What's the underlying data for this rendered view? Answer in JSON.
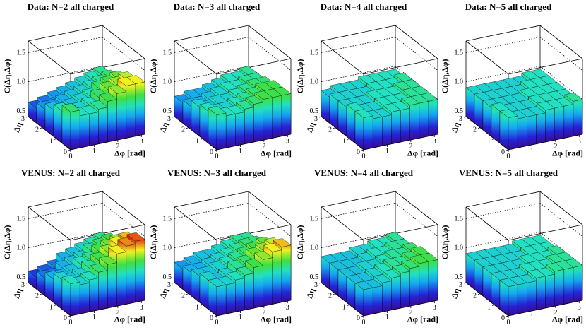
{
  "chart_data": [
    {
      "type": "lego3d",
      "title": "Data: N=2  all charged",
      "xlabel": "Δφ [rad]",
      "ylabel": "Δη",
      "zlabel": "C(Δη,Δφ)",
      "xlim": [
        0,
        3.1416
      ],
      "xticks": [
        0,
        1,
        2,
        3
      ],
      "ylim": [
        0,
        3
      ],
      "yticks": [
        0,
        1,
        2,
        3
      ],
      "zlim": [
        0.4,
        1.7
      ],
      "zticks": [
        0.5,
        {
          "value": 1,
          "label": "1.0"
        },
        1.5
      ],
      "xbins": [
        0,
        0.3927,
        0.7854,
        1.1781,
        1.5708,
        1.9635,
        2.3562,
        2.7489,
        3.1416
      ],
      "ybins": [
        0,
        0.6,
        1.2,
        1.8,
        2.4,
        3.0
      ],
      "z": [
        [
          1.05,
          0.95,
          0.95,
          1.0,
          1.1,
          1.2,
          1.3,
          1.3
        ],
        [
          0.95,
          0.9,
          0.9,
          0.95,
          1.05,
          1.15,
          1.2,
          1.25
        ],
        [
          0.85,
          0.8,
          0.85,
          0.9,
          0.95,
          1.05,
          1.1,
          1.15
        ],
        [
          0.75,
          0.75,
          0.8,
          0.85,
          0.9,
          0.95,
          1.0,
          1.05
        ],
        [
          0.65,
          0.7,
          0.75,
          0.8,
          0.85,
          0.9,
          0.95,
          1.0
        ]
      ]
    },
    {
      "type": "lego3d",
      "title": "Data: N=3  all charged",
      "xlabel": "Δφ [rad]",
      "ylabel": "Δη",
      "zlabel": "C(Δη,Δφ)",
      "xlim": [
        0,
        3.1416
      ],
      "xticks": [
        0,
        1,
        2,
        3
      ],
      "ylim": [
        0,
        3
      ],
      "yticks": [
        0,
        1,
        2,
        3
      ],
      "zlim": [
        0.4,
        1.7
      ],
      "zticks": [
        0.5,
        {
          "value": 1,
          "label": "1.0"
        },
        1.5
      ],
      "xbins": [
        0,
        0.3927,
        0.7854,
        1.1781,
        1.5708,
        1.9635,
        2.3562,
        2.7489,
        3.1416
      ],
      "ybins": [
        0,
        0.6,
        1.2,
        1.8,
        2.4,
        3.0
      ],
      "z": [
        [
          1.0,
          0.95,
          0.95,
          1.0,
          1.05,
          1.1,
          1.1,
          1.1
        ],
        [
          0.95,
          0.9,
          0.9,
          0.95,
          1.0,
          1.05,
          1.1,
          1.1
        ],
        [
          0.9,
          0.85,
          0.9,
          0.9,
          0.95,
          1.0,
          1.05,
          1.05
        ],
        [
          0.8,
          0.8,
          0.85,
          0.9,
          0.95,
          0.95,
          1.0,
          1.0
        ],
        [
          0.75,
          0.8,
          0.8,
          0.85,
          0.9,
          0.95,
          0.95,
          1.0
        ]
      ]
    },
    {
      "type": "lego3d",
      "title": "Data: N=4  all charged",
      "xlabel": "Δφ [rad]",
      "ylabel": "Δη",
      "zlabel": "C(Δη,Δφ)",
      "xlim": [
        0,
        3.1416
      ],
      "xticks": [
        0,
        1,
        2,
        3
      ],
      "ylim": [
        0,
        3
      ],
      "yticks": [
        0,
        1,
        2,
        3
      ],
      "zlim": [
        0.4,
        1.7
      ],
      "zticks": [
        0.5,
        {
          "value": 1,
          "label": "1.0"
        },
        1.5
      ],
      "xbins": [
        0,
        0.3927,
        0.7854,
        1.1781,
        1.5708,
        1.9635,
        2.3562,
        2.7489,
        3.1416
      ],
      "ybins": [
        0,
        0.6,
        1.2,
        1.8,
        2.4,
        3.0
      ],
      "z": [
        [
          0.95,
          0.9,
          0.9,
          0.95,
          0.95,
          1.0,
          1.0,
          1.0
        ],
        [
          0.95,
          0.9,
          0.9,
          0.95,
          0.95,
          0.95,
          1.0,
          1.0
        ],
        [
          0.9,
          0.9,
          0.9,
          0.95,
          0.95,
          0.95,
          1.0,
          1.0
        ],
        [
          0.9,
          0.9,
          0.9,
          0.9,
          0.95,
          0.95,
          0.95,
          1.0
        ],
        [
          0.85,
          0.9,
          0.9,
          0.9,
          0.95,
          0.95,
          0.95,
          0.95
        ]
      ]
    },
    {
      "type": "lego3d",
      "title": "Data: N=5  all charged",
      "xlabel": "Δφ [rad]",
      "ylabel": "Δη",
      "zlabel": "C(Δη,Δφ)",
      "xlim": [
        0,
        3.1416
      ],
      "xticks": [
        0,
        1,
        2,
        3
      ],
      "ylim": [
        0,
        3
      ],
      "yticks": [
        0,
        1,
        2,
        3
      ],
      "zlim": [
        0.4,
        1.7
      ],
      "zticks": [
        0.5,
        {
          "value": 1,
          "label": "1.0"
        },
        1.5
      ],
      "xbins": [
        0,
        0.3927,
        0.7854,
        1.1781,
        1.5708,
        1.9635,
        2.3562,
        2.7489,
        3.1416
      ],
      "ybins": [
        0,
        0.6,
        1.2,
        1.8,
        2.4,
        3.0
      ],
      "z": [
        [
          0.95,
          0.9,
          0.9,
          0.9,
          0.95,
          0.95,
          0.95,
          1.0
        ],
        [
          0.95,
          0.9,
          0.9,
          0.9,
          0.95,
          0.95,
          0.95,
          0.95
        ],
        [
          0.9,
          0.9,
          0.9,
          0.9,
          0.95,
          0.95,
          0.95,
          0.95
        ],
        [
          0.9,
          0.9,
          0.9,
          0.9,
          0.9,
          0.95,
          0.95,
          0.95
        ],
        [
          0.9,
          0.9,
          0.9,
          0.9,
          0.9,
          0.9,
          0.95,
          0.95
        ]
      ]
    },
    {
      "type": "lego3d",
      "title": "VENUS: N=2  all charged",
      "xlabel": "Δφ [rad]",
      "ylabel": "Δη",
      "zlabel": "C(Δη,Δφ)",
      "xlim": [
        0,
        3.1416
      ],
      "xticks": [
        0,
        1,
        2,
        3
      ],
      "ylim": [
        0,
        3
      ],
      "yticks": [
        0,
        1,
        2,
        3
      ],
      "zlim": [
        0.4,
        1.7
      ],
      "zticks": [
        0.5,
        {
          "value": 1,
          "label": "1.0"
        },
        1.5
      ],
      "xbins": [
        0,
        0.3927,
        0.7854,
        1.1781,
        1.5708,
        1.9635,
        2.3562,
        2.7489,
        3.1416
      ],
      "ybins": [
        0,
        0.6,
        1.2,
        1.8,
        2.4,
        3.0
      ],
      "z": [
        [
          0.95,
          0.9,
          0.95,
          1.05,
          1.15,
          1.3,
          1.4,
          1.45
        ],
        [
          0.9,
          0.85,
          0.9,
          1.0,
          1.1,
          1.2,
          1.3,
          1.35
        ],
        [
          0.8,
          0.8,
          0.85,
          0.95,
          1.0,
          1.1,
          1.15,
          1.2
        ],
        [
          0.7,
          0.7,
          0.8,
          0.85,
          0.9,
          1.0,
          1.05,
          1.1
        ],
        [
          0.6,
          0.65,
          0.7,
          0.8,
          0.85,
          0.9,
          0.95,
          1.0
        ]
      ]
    },
    {
      "type": "lego3d",
      "title": "VENUS: N=3  all charged",
      "xlabel": "Δφ [rad]",
      "ylabel": "Δη",
      "zlabel": "C(Δη,Δφ)",
      "xlim": [
        0,
        3.1416
      ],
      "xticks": [
        0,
        1,
        2,
        3
      ],
      "ylim": [
        0,
        3
      ],
      "yticks": [
        0,
        1,
        2,
        3
      ],
      "zlim": [
        0.4,
        1.7
      ],
      "zticks": [
        0.5,
        {
          "value": 1,
          "label": "1.0"
        },
        1.5
      ],
      "xbins": [
        0,
        0.3927,
        0.7854,
        1.1781,
        1.5708,
        1.9635,
        2.3562,
        2.7489,
        3.1416
      ],
      "ybins": [
        0,
        0.6,
        1.2,
        1.8,
        2.4,
        3.0
      ],
      "z": [
        [
          0.9,
          0.9,
          0.95,
          1.0,
          1.1,
          1.2,
          1.3,
          1.35
        ],
        [
          0.9,
          0.85,
          0.9,
          1.0,
          1.05,
          1.15,
          1.2,
          1.25
        ],
        [
          0.85,
          0.85,
          0.9,
          0.95,
          1.0,
          1.05,
          1.1,
          1.15
        ],
        [
          0.8,
          0.8,
          0.85,
          0.9,
          0.95,
          1.0,
          1.05,
          1.05
        ],
        [
          0.75,
          0.8,
          0.85,
          0.85,
          0.9,
          0.95,
          1.0,
          1.0
        ]
      ]
    },
    {
      "type": "lego3d",
      "title": "VENUS: N=4  all charged",
      "xlabel": "Δφ [rad]",
      "ylabel": "Δη",
      "zlabel": "C(Δη,Δφ)",
      "xlim": [
        0,
        3.1416
      ],
      "xticks": [
        0,
        1,
        2,
        3
      ],
      "ylim": [
        0,
        3
      ],
      "yticks": [
        0,
        1,
        2,
        3
      ],
      "zlim": [
        0.4,
        1.7
      ],
      "zticks": [
        0.5,
        {
          "value": 1,
          "label": "1.0"
        },
        1.5
      ],
      "xbins": [
        0,
        0.3927,
        0.7854,
        1.1781,
        1.5708,
        1.9635,
        2.3562,
        2.7489,
        3.1416
      ],
      "ybins": [
        0,
        0.6,
        1.2,
        1.8,
        2.4,
        3.0
      ],
      "z": [
        [
          0.85,
          0.85,
          0.9,
          0.95,
          1.0,
          1.05,
          1.1,
          1.1
        ],
        [
          0.85,
          0.85,
          0.9,
          0.95,
          1.0,
          1.0,
          1.05,
          1.1
        ],
        [
          0.85,
          0.85,
          0.9,
          0.9,
          0.95,
          1.0,
          1.0,
          1.05
        ],
        [
          0.85,
          0.85,
          0.85,
          0.9,
          0.95,
          0.95,
          1.0,
          1.0
        ],
        [
          0.85,
          0.85,
          0.85,
          0.9,
          0.9,
          0.95,
          0.95,
          1.0
        ]
      ]
    },
    {
      "type": "lego3d",
      "title": "VENUS: N=5  all charged",
      "xlabel": "Δφ [rad]",
      "ylabel": "Δη",
      "zlabel": "C(Δη,Δφ)",
      "xlim": [
        0,
        3.1416
      ],
      "xticks": [
        0,
        1,
        2,
        3
      ],
      "ylim": [
        0,
        3
      ],
      "yticks": [
        0,
        1,
        2,
        3
      ],
      "zlim": [
        0.4,
        1.7
      ],
      "zticks": [
        0.5,
        {
          "value": 1,
          "label": "1.0"
        },
        1.5
      ],
      "xbins": [
        0,
        0.3927,
        0.7854,
        1.1781,
        1.5708,
        1.9635,
        2.3562,
        2.7489,
        3.1416
      ],
      "ybins": [
        0,
        0.6,
        1.2,
        1.8,
        2.4,
        3.0
      ],
      "z": [
        [
          0.9,
          0.9,
          0.9,
          0.95,
          0.95,
          1.0,
          1.0,
          1.0
        ],
        [
          0.9,
          0.9,
          0.9,
          0.95,
          0.95,
          0.95,
          1.0,
          1.0
        ],
        [
          0.9,
          0.9,
          0.9,
          0.9,
          0.95,
          0.95,
          0.95,
          1.0
        ],
        [
          0.9,
          0.9,
          0.9,
          0.9,
          0.9,
          0.95,
          0.95,
          0.95
        ],
        [
          0.9,
          0.9,
          0.9,
          0.9,
          0.9,
          0.95,
          0.95,
          0.95
        ]
      ]
    }
  ]
}
